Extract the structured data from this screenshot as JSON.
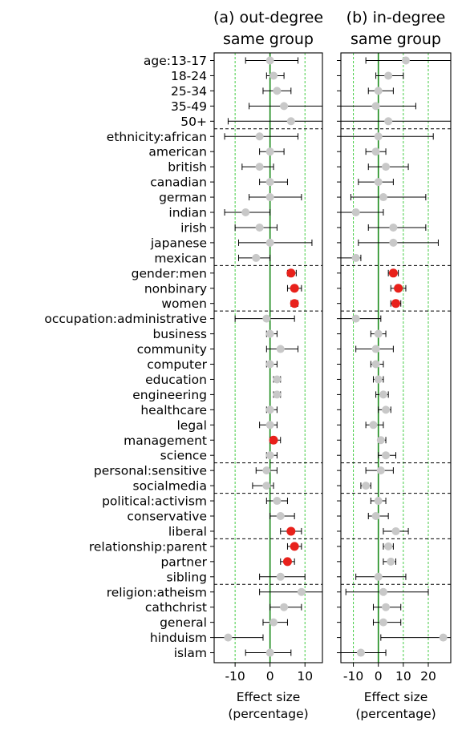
{
  "chart_data": {
    "type": "scatter",
    "xlabel": "Effect size\n(percentage)",
    "rows": [
      {
        "label": "age:13-17",
        "group": "age"
      },
      {
        "label": "18-24",
        "group": "age"
      },
      {
        "label": "25-34",
        "group": "age"
      },
      {
        "label": "35-49",
        "group": "age"
      },
      {
        "label": "50+",
        "group": "age"
      },
      {
        "label": "ethnicity:african",
        "group": "ethnicity"
      },
      {
        "label": "american",
        "group": "ethnicity"
      },
      {
        "label": "british",
        "group": "ethnicity"
      },
      {
        "label": "canadian",
        "group": "ethnicity"
      },
      {
        "label": "german",
        "group": "ethnicity"
      },
      {
        "label": "indian",
        "group": "ethnicity"
      },
      {
        "label": "irish",
        "group": "ethnicity"
      },
      {
        "label": "japanese",
        "group": "ethnicity"
      },
      {
        "label": "mexican",
        "group": "ethnicity"
      },
      {
        "label": "gender:men",
        "group": "gender"
      },
      {
        "label": "nonbinary",
        "group": "gender"
      },
      {
        "label": "women",
        "group": "gender"
      },
      {
        "label": "occupation:administrative",
        "group": "occupation"
      },
      {
        "label": "business",
        "group": "occupation"
      },
      {
        "label": "community",
        "group": "occupation"
      },
      {
        "label": "computer",
        "group": "occupation"
      },
      {
        "label": "education",
        "group": "occupation"
      },
      {
        "label": "engineering",
        "group": "occupation"
      },
      {
        "label": "healthcare",
        "group": "occupation"
      },
      {
        "label": "legal",
        "group": "occupation"
      },
      {
        "label": "management",
        "group": "occupation"
      },
      {
        "label": "science",
        "group": "occupation"
      },
      {
        "label": "personal:sensitive",
        "group": "personal"
      },
      {
        "label": "socialmedia",
        "group": "personal"
      },
      {
        "label": "political:activism",
        "group": "political"
      },
      {
        "label": "conservative",
        "group": "political"
      },
      {
        "label": "liberal",
        "group": "political"
      },
      {
        "label": "relationship:parent",
        "group": "relationship"
      },
      {
        "label": "partner",
        "group": "relationship"
      },
      {
        "label": "sibling",
        "group": "relationship"
      },
      {
        "label": "religion:atheism",
        "group": "religion"
      },
      {
        "label": "cathchrist",
        "group": "religion"
      },
      {
        "label": "general",
        "group": "religion"
      },
      {
        "label": "hinduism",
        "group": "religion"
      },
      {
        "label": "islam",
        "group": "religion"
      }
    ],
    "panels": [
      {
        "title_line1": "(a) out-degree",
        "title_line2": "same group",
        "xlim": [
          -16,
          15
        ],
        "xticks": [
          -10,
          0,
          10
        ],
        "xtick_labels": [
          "-10",
          "0",
          "10"
        ],
        "ref_lines": [
          -10,
          10
        ],
        "points": [
          {
            "est": 0,
            "lo": -7,
            "hi": 8,
            "sig": false
          },
          {
            "est": 1,
            "lo": -1,
            "hi": 4,
            "sig": false
          },
          {
            "est": 2,
            "lo": -2,
            "hi": 6,
            "sig": false
          },
          {
            "est": 4,
            "lo": -6,
            "hi": 15,
            "sig": false
          },
          {
            "est": 6,
            "lo": -12,
            "hi": 15,
            "sig": false
          },
          {
            "est": -3,
            "lo": -13,
            "hi": 8,
            "sig": false
          },
          {
            "est": 0,
            "lo": -3,
            "hi": 4,
            "sig": false
          },
          {
            "est": -3,
            "lo": -8,
            "hi": 1,
            "sig": false
          },
          {
            "est": 0,
            "lo": -3,
            "hi": 5,
            "sig": false
          },
          {
            "est": 0,
            "lo": -6,
            "hi": 9,
            "sig": false
          },
          {
            "est": -7,
            "lo": -13,
            "hi": 0,
            "sig": false
          },
          {
            "est": -3,
            "lo": -10,
            "hi": 2,
            "sig": false
          },
          {
            "est": 0,
            "lo": -9,
            "hi": 12,
            "sig": false
          },
          {
            "est": -4,
            "lo": -9,
            "hi": 0,
            "sig": false
          },
          {
            "est": 6,
            "lo": 5,
            "hi": 7.5,
            "sig": true
          },
          {
            "est": 7,
            "lo": 5,
            "hi": 9,
            "sig": true
          },
          {
            "est": 7,
            "lo": 6,
            "hi": 8,
            "sig": true
          },
          {
            "est": -1,
            "lo": -10,
            "hi": 7,
            "sig": false
          },
          {
            "est": 0,
            "lo": -1,
            "hi": 2,
            "sig": false
          },
          {
            "est": 3,
            "lo": -1,
            "hi": 8,
            "sig": false
          },
          {
            "est": 0,
            "lo": -1,
            "hi": 2,
            "sig": false
          },
          {
            "est": 2,
            "lo": 1,
            "hi": 3,
            "sig": false
          },
          {
            "est": 2,
            "lo": 1,
            "hi": 3,
            "sig": false
          },
          {
            "est": 0,
            "lo": -1,
            "hi": 2,
            "sig": false
          },
          {
            "est": 0,
            "lo": -3,
            "hi": 2,
            "sig": false
          },
          {
            "est": 1,
            "lo": 0,
            "hi": 3,
            "sig": true
          },
          {
            "est": 0,
            "lo": -1,
            "hi": 2,
            "sig": false
          },
          {
            "est": -1,
            "lo": -4,
            "hi": 2,
            "sig": false
          },
          {
            "est": -1,
            "lo": -5,
            "hi": 1,
            "sig": false
          },
          {
            "est": 2,
            "lo": -1,
            "hi": 5,
            "sig": false
          },
          {
            "est": 3,
            "lo": 0,
            "hi": 7,
            "sig": false
          },
          {
            "est": 6,
            "lo": 3,
            "hi": 9,
            "sig": true
          },
          {
            "est": 7,
            "lo": 5,
            "hi": 9,
            "sig": true
          },
          {
            "est": 5,
            "lo": 3,
            "hi": 7,
            "sig": true
          },
          {
            "est": 3,
            "lo": -3,
            "hi": 10,
            "sig": false
          },
          {
            "est": 9,
            "lo": -3,
            "hi": 15,
            "sig": false
          },
          {
            "est": 4,
            "lo": 0,
            "hi": 9,
            "sig": false
          },
          {
            "est": 1,
            "lo": -2,
            "hi": 5,
            "sig": false
          },
          {
            "est": -12,
            "lo": -16,
            "hi": -2,
            "sig": false
          },
          {
            "est": 0,
            "lo": -7,
            "hi": 6,
            "sig": false
          }
        ]
      },
      {
        "title_line1": "(b) in-degree",
        "title_line2": "same group",
        "xlim": [
          -15,
          29
        ],
        "xticks": [
          -10,
          0,
          10,
          20
        ],
        "xtick_labels": [
          "-10",
          "0",
          "10",
          "20"
        ],
        "ref_lines": [
          -10,
          10,
          20
        ],
        "points": [
          {
            "est": 11,
            "lo": -5,
            "hi": 29,
            "sig": false
          },
          {
            "est": 4,
            "lo": -1,
            "hi": 10,
            "sig": false
          },
          {
            "est": 0,
            "lo": -4,
            "hi": 6,
            "sig": false
          },
          {
            "est": -1,
            "lo": -15,
            "hi": 15,
            "sig": false
          },
          {
            "est": 4,
            "lo": -15,
            "hi": 29,
            "sig": false
          },
          {
            "est": 0,
            "lo": -15,
            "hi": 22,
            "sig": false
          },
          {
            "est": -1,
            "lo": -5,
            "hi": 3,
            "sig": false
          },
          {
            "est": 3,
            "lo": -4,
            "hi": 12,
            "sig": false
          },
          {
            "est": 0,
            "lo": -8,
            "hi": 6,
            "sig": false
          },
          {
            "est": 2,
            "lo": -11,
            "hi": 19,
            "sig": false
          },
          {
            "est": -9,
            "lo": -15,
            "hi": 2,
            "sig": false
          },
          {
            "est": 6,
            "lo": -4,
            "hi": 19,
            "sig": false
          },
          {
            "est": 6,
            "lo": -8,
            "hi": 24,
            "sig": false
          },
          {
            "est": -9,
            "lo": -15,
            "hi": -7,
            "sig": false
          },
          {
            "est": 6,
            "lo": 4,
            "hi": 8,
            "sig": true
          },
          {
            "est": 8,
            "lo": 5,
            "hi": 11,
            "sig": true
          },
          {
            "est": 7,
            "lo": 5,
            "hi": 9,
            "sig": true
          },
          {
            "est": -9,
            "lo": -15,
            "hi": 1,
            "sig": false
          },
          {
            "est": 0,
            "lo": -3,
            "hi": 3,
            "sig": false
          },
          {
            "est": -1,
            "lo": -9,
            "hi": 6,
            "sig": false
          },
          {
            "est": -1,
            "lo": -3,
            "hi": 2,
            "sig": false
          },
          {
            "est": 0,
            "lo": -2,
            "hi": 2,
            "sig": false
          },
          {
            "est": 2,
            "lo": -1,
            "hi": 4,
            "sig": false
          },
          {
            "est": 3,
            "lo": 0,
            "hi": 5,
            "sig": false
          },
          {
            "est": -2,
            "lo": -5,
            "hi": 2,
            "sig": false
          },
          {
            "est": 1,
            "lo": 0,
            "hi": 3,
            "sig": false
          },
          {
            "est": 3,
            "lo": 0,
            "hi": 7,
            "sig": false
          },
          {
            "est": 1,
            "lo": -5,
            "hi": 6,
            "sig": false
          },
          {
            "est": -5,
            "lo": -7,
            "hi": -3,
            "sig": false
          },
          {
            "est": 0,
            "lo": -3,
            "hi": 3,
            "sig": false
          },
          {
            "est": -1,
            "lo": -4,
            "hi": 4,
            "sig": false
          },
          {
            "est": 7,
            "lo": 2,
            "hi": 12,
            "sig": false
          },
          {
            "est": 4,
            "lo": 2,
            "hi": 6,
            "sig": false
          },
          {
            "est": 5,
            "lo": 2,
            "hi": 7,
            "sig": false
          },
          {
            "est": 0,
            "lo": -9,
            "hi": 11,
            "sig": false
          },
          {
            "est": 2,
            "lo": -13,
            "hi": 20,
            "sig": false
          },
          {
            "est": 3,
            "lo": -2,
            "hi": 9,
            "sig": false
          },
          {
            "est": 2,
            "lo": -2,
            "hi": 9,
            "sig": false
          },
          {
            "est": 26,
            "lo": 1,
            "hi": 29,
            "sig": false
          },
          {
            "est": -7,
            "lo": -15,
            "hi": 3,
            "sig": false
          }
        ]
      }
    ]
  },
  "colors": {
    "significant": "#e8211b",
    "not_significant": "#c8c8c8",
    "zero_line": "#1a8a1a",
    "ref_line": "#44cc44",
    "error_bar": "#000000",
    "separator": "#000000"
  }
}
